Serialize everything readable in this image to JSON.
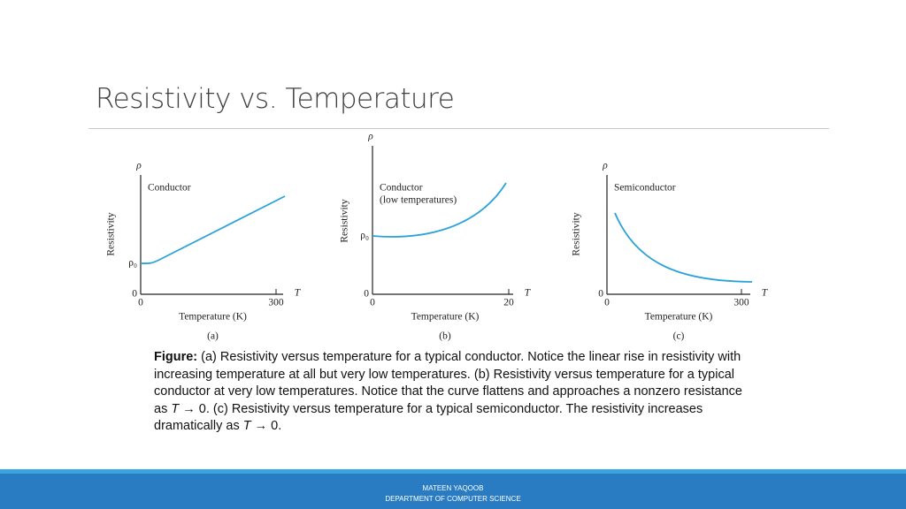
{
  "title": "Resistivity vs. Temperature",
  "figure": {
    "panels": [
      {
        "y_symbol": "ρ",
        "y_label": "Resistivity",
        "curve_label": [
          "Conductor"
        ],
        "y_marks": [
          "ρ₀",
          "0"
        ],
        "x_ticks": [
          "0",
          "300"
        ],
        "x_symbol": "T",
        "x_label": "Temperature (K)",
        "panel_label": "(a)"
      },
      {
        "y_symbol": "ρ",
        "y_label": "Resistivity",
        "curve_label": [
          "Conductor",
          "(low temperatures)"
        ],
        "y_marks": [
          "ρ₀",
          "0"
        ],
        "x_ticks": [
          "0",
          "20"
        ],
        "x_symbol": "T",
        "x_label": "Temperature (K)",
        "panel_label": "(b)"
      },
      {
        "y_symbol": "ρ",
        "y_label": "Resistivity",
        "curve_label": [
          "Semiconductor"
        ],
        "y_marks": [
          "0"
        ],
        "x_ticks": [
          "0",
          "300"
        ],
        "x_symbol": "T",
        "x_label": "Temperature (K)",
        "panel_label": "(c)"
      }
    ]
  },
  "caption": {
    "label": "Figure:",
    "parts": [
      " (a) Resistivity versus temperature for a typical conductor. Notice the linear rise in resistivity with increasing temperature at all but very low temperatures. (b) Resistivity versus temperature for a typical conductor at very low temperatures. Notice that the curve flattens and approaches a nonzero resistance as ",
      "T",
      " → 0. (c) Resistivity versus temperature for a typical semiconductor. The resistivity increases dramatically as ",
      "T",
      " → 0."
    ]
  },
  "footer": {
    "name": "MATEEN YAQOOB",
    "department": "DEPARTMENT OF COMPUTER SCIENCE"
  }
}
